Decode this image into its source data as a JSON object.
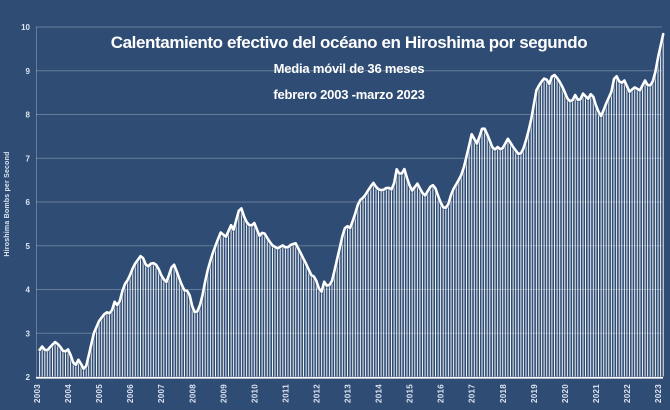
{
  "chart_data": {
    "type": "line",
    "title": "Calentamiento efectivo del océano en Hiroshima por segundo",
    "subtitle": "Media móvil de 36 meses",
    "date_range": "febrero 2003 -marzo 2023",
    "ylabel": "Hiroshima Bombs per Second",
    "xlabel": "",
    "x_ticks": [
      2003,
      2004,
      2005,
      2006,
      2007,
      2008,
      2009,
      2010,
      2011,
      2012,
      2013,
      2014,
      2015,
      2016,
      2017,
      2018,
      2019,
      2020,
      2021,
      2022,
      2023
    ],
    "y_ticks": [
      2,
      3,
      4,
      5,
      6,
      7,
      8,
      9,
      10
    ],
    "ylim": [
      2,
      10
    ],
    "xlim": [
      2003,
      2023.17
    ],
    "grid": true,
    "legend": "none",
    "fill_style": "vertical-comb-monthly",
    "series": [
      {
        "name": "Media móvil de 36 meses",
        "points": [
          [
            2003.083,
            2.62
          ],
          [
            2003.17,
            2.7
          ],
          [
            2003.29,
            2.58
          ],
          [
            2003.42,
            2.68
          ],
          [
            2003.58,
            2.8
          ],
          [
            2003.71,
            2.73
          ],
          [
            2003.87,
            2.56
          ],
          [
            2004.0,
            2.63
          ],
          [
            2004.12,
            2.45
          ],
          [
            2004.21,
            2.22
          ],
          [
            2004.33,
            2.4
          ],
          [
            2004.46,
            2.25
          ],
          [
            2004.54,
            2.13
          ],
          [
            2004.67,
            2.5
          ],
          [
            2004.83,
            3.0
          ],
          [
            2005.0,
            3.28
          ],
          [
            2005.17,
            3.44
          ],
          [
            2005.29,
            3.5
          ],
          [
            2005.37,
            3.42
          ],
          [
            2005.5,
            3.72
          ],
          [
            2005.62,
            3.61
          ],
          [
            2005.79,
            4.08
          ],
          [
            2005.96,
            4.26
          ],
          [
            2006.12,
            4.55
          ],
          [
            2006.29,
            4.72
          ],
          [
            2006.37,
            4.8
          ],
          [
            2006.54,
            4.5
          ],
          [
            2006.71,
            4.62
          ],
          [
            2006.87,
            4.55
          ],
          [
            2007.04,
            4.26
          ],
          [
            2007.17,
            4.17
          ],
          [
            2007.33,
            4.5
          ],
          [
            2007.42,
            4.57
          ],
          [
            2007.58,
            4.26
          ],
          [
            2007.71,
            4.02
          ],
          [
            2007.79,
            3.94
          ],
          [
            2007.87,
            4.0
          ],
          [
            2008.0,
            3.62
          ],
          [
            2008.12,
            3.42
          ],
          [
            2008.29,
            3.72
          ],
          [
            2008.46,
            4.35
          ],
          [
            2008.62,
            4.75
          ],
          [
            2008.79,
            5.08
          ],
          [
            2008.92,
            5.31
          ],
          [
            2009.08,
            5.2
          ],
          [
            2009.25,
            5.47
          ],
          [
            2009.33,
            5.36
          ],
          [
            2009.5,
            5.8
          ],
          [
            2009.58,
            5.86
          ],
          [
            2009.71,
            5.58
          ],
          [
            2009.87,
            5.44
          ],
          [
            2010.0,
            5.52
          ],
          [
            2010.17,
            5.22
          ],
          [
            2010.29,
            5.33
          ],
          [
            2010.46,
            5.12
          ],
          [
            2010.58,
            5.01
          ],
          [
            2010.75,
            4.94
          ],
          [
            2010.92,
            5.01
          ],
          [
            2011.04,
            4.94
          ],
          [
            2011.17,
            5.02
          ],
          [
            2011.33,
            5.06
          ],
          [
            2011.5,
            4.82
          ],
          [
            2011.67,
            4.58
          ],
          [
            2011.83,
            4.33
          ],
          [
            2011.96,
            4.28
          ],
          [
            2012.08,
            4.02
          ],
          [
            2012.17,
            3.95
          ],
          [
            2012.25,
            4.18
          ],
          [
            2012.37,
            4.05
          ],
          [
            2012.5,
            4.2
          ],
          [
            2012.62,
            4.55
          ],
          [
            2012.75,
            4.95
          ],
          [
            2012.87,
            5.33
          ],
          [
            2012.96,
            5.47
          ],
          [
            2013.08,
            5.4
          ],
          [
            2013.21,
            5.65
          ],
          [
            2013.37,
            6.02
          ],
          [
            2013.54,
            6.12
          ],
          [
            2013.71,
            6.32
          ],
          [
            2013.83,
            6.44
          ],
          [
            2013.96,
            6.3
          ],
          [
            2014.12,
            6.26
          ],
          [
            2014.29,
            6.34
          ],
          [
            2014.46,
            6.27
          ],
          [
            2014.58,
            6.75
          ],
          [
            2014.71,
            6.6
          ],
          [
            2014.83,
            6.76
          ],
          [
            2014.96,
            6.44
          ],
          [
            2015.08,
            6.26
          ],
          [
            2015.25,
            6.42
          ],
          [
            2015.42,
            6.2
          ],
          [
            2015.5,
            6.15
          ],
          [
            2015.67,
            6.35
          ],
          [
            2015.79,
            6.4
          ],
          [
            2015.96,
            6.05
          ],
          [
            2016.08,
            5.88
          ],
          [
            2016.21,
            5.86
          ],
          [
            2016.37,
            6.25
          ],
          [
            2016.54,
            6.45
          ],
          [
            2016.71,
            6.68
          ],
          [
            2016.87,
            7.15
          ],
          [
            2017.0,
            7.55
          ],
          [
            2017.17,
            7.33
          ],
          [
            2017.37,
            7.75
          ],
          [
            2017.54,
            7.48
          ],
          [
            2017.71,
            7.17
          ],
          [
            2017.83,
            7.26
          ],
          [
            2017.96,
            7.18
          ],
          [
            2018.17,
            7.45
          ],
          [
            2018.33,
            7.26
          ],
          [
            2018.5,
            7.1
          ],
          [
            2018.62,
            7.12
          ],
          [
            2018.79,
            7.5
          ],
          [
            2018.92,
            7.9
          ],
          [
            2019.08,
            8.55
          ],
          [
            2019.21,
            8.72
          ],
          [
            2019.37,
            8.85
          ],
          [
            2019.5,
            8.7
          ],
          [
            2019.62,
            8.94
          ],
          [
            2019.79,
            8.8
          ],
          [
            2019.96,
            8.58
          ],
          [
            2020.08,
            8.37
          ],
          [
            2020.21,
            8.27
          ],
          [
            2020.33,
            8.45
          ],
          [
            2020.46,
            8.28
          ],
          [
            2020.58,
            8.48
          ],
          [
            2020.75,
            8.36
          ],
          [
            2020.87,
            8.51
          ],
          [
            2021.04,
            8.12
          ],
          [
            2021.17,
            7.96
          ],
          [
            2021.33,
            8.25
          ],
          [
            2021.5,
            8.52
          ],
          [
            2021.62,
            8.94
          ],
          [
            2021.79,
            8.7
          ],
          [
            2021.92,
            8.78
          ],
          [
            2022.08,
            8.52
          ],
          [
            2022.25,
            8.62
          ],
          [
            2022.42,
            8.55
          ],
          [
            2022.58,
            8.78
          ],
          [
            2022.71,
            8.62
          ],
          [
            2022.87,
            8.8
          ],
          [
            2023.0,
            9.3
          ],
          [
            2023.17,
            9.85
          ]
        ]
      }
    ],
    "colors": {
      "background": "#2f4c74",
      "line": "#ffffff",
      "grid": "#6e82a5",
      "baseline_axis": "#ffffff",
      "tick_text": "#dce5f1",
      "title_text": "#ffffff"
    }
  }
}
